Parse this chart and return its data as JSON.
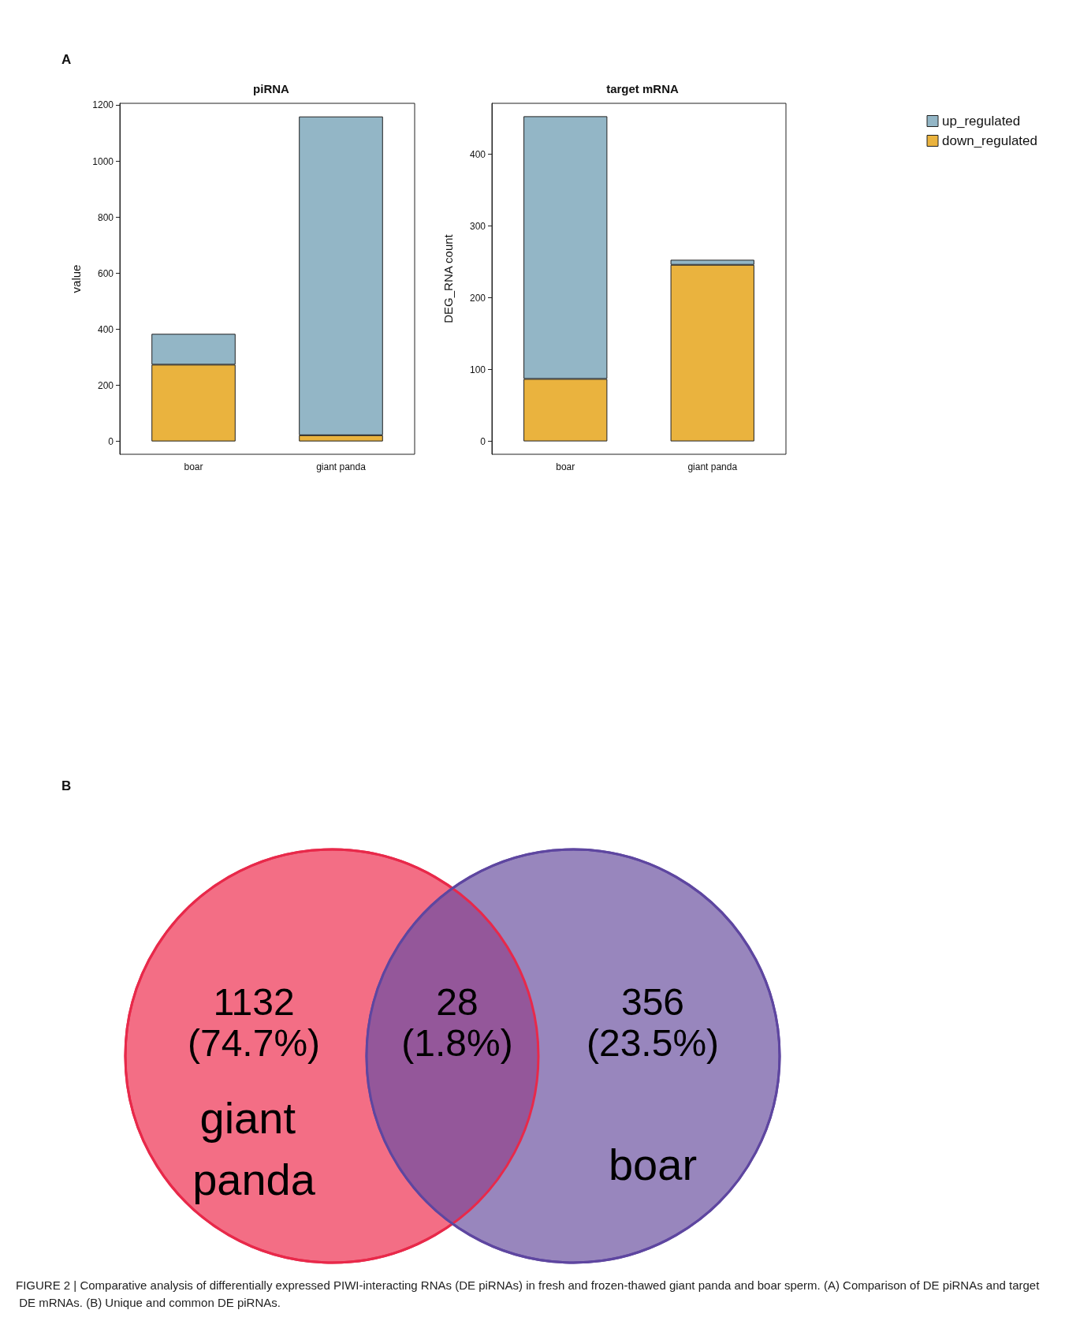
{
  "chart_data": [
    {
      "type": "bar",
      "title": "piRNA",
      "ylabel": "value",
      "categories": [
        "boar",
        "giant panda"
      ],
      "stacked": true,
      "series": [
        {
          "color": "#eab33e",
          "values": [
            274,
            22
          ]
        },
        {
          "color": "#93b6c6",
          "values": [
            110,
            1138
          ]
        }
      ],
      "ylim": [
        -46,
        1207
      ],
      "yticks": [
        0,
        200,
        400,
        600,
        800,
        1000,
        1200
      ],
      "grid": false,
      "annotations": [
        "A"
      ]
    },
    {
      "type": "bar",
      "title": "target mRNA",
      "ylabel": "DEG_RNA count",
      "categories": [
        "boar",
        "giant panda"
      ],
      "stacked": true,
      "series": [
        {
          "name": "down_regulated",
          "color": "#eab33e",
          "values": [
            87,
            246
          ]
        },
        {
          "name": "up_regulated",
          "color": "#93b6c6",
          "values": [
            366,
            7
          ]
        }
      ],
      "ylim": [
        -18,
        471
      ],
      "yticks": [
        0,
        100,
        200,
        300,
        400
      ],
      "grid": false,
      "legend": "right"
    },
    {
      "type": "other",
      "categories": [
        "giant panda",
        null,
        "boar"
      ],
      "values": [
        1132,
        28,
        356
      ],
      "data_labels": true,
      "colors": [
        "#f36e85",
        "#94579a",
        "#9886bd"
      ],
      "annotations": [
        "B",
        "(74.7%)",
        "(1.8%)",
        "(23.5%)",
        "FIGURE 2 | Comparative analysis of differentially expressed PIWI-interacting RNAs (DE piRNAs) in fresh and frozen-thawed giant panda and boar sperm. (A) Comparison of DE piRNAs and target DE mRNAs. (B) Unique and common DE piRNAs."
      ]
    }
  ]
}
